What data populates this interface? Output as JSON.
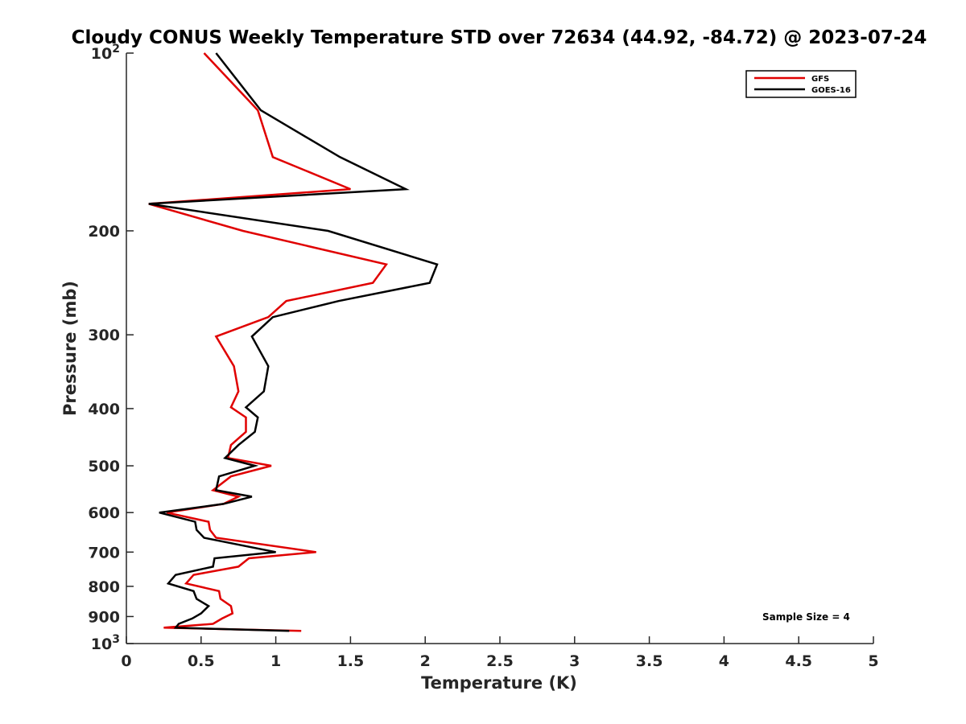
{
  "chart_data": {
    "type": "line",
    "title": "Cloudy CONUS Weekly Temperature STD over 72634 (44.92, -84.72) @ 2023-07-24",
    "xlabel": "Temperature (K)",
    "ylabel": "Pressure (mb)",
    "xlim": [
      0,
      5
    ],
    "ylim": [
      100,
      1000
    ],
    "y_scale": "log",
    "y_reversed": true,
    "x_ticks": [
      "0",
      "0.5",
      "1",
      "1.5",
      "2",
      "2.5",
      "3",
      "3.5",
      "4",
      "4.5",
      "5"
    ],
    "x_tick_values": [
      0,
      0.5,
      1,
      1.5,
      2,
      2.5,
      3,
      3.5,
      4,
      4.5,
      5
    ],
    "y_ticks": [
      {
        "value": 100,
        "base": "10",
        "exp": "2"
      },
      {
        "value": 200,
        "label": "200"
      },
      {
        "value": 300,
        "label": "300"
      },
      {
        "value": 400,
        "label": "400"
      },
      {
        "value": 500,
        "label": "500"
      },
      {
        "value": 600,
        "label": "600"
      },
      {
        "value": 700,
        "label": "700"
      },
      {
        "value": 800,
        "label": "800"
      },
      {
        "value": 900,
        "label": "900"
      },
      {
        "value": 1000,
        "base": "10",
        "exp": "3"
      }
    ],
    "legend_position": "top-right",
    "grid": false,
    "annotation": "Sample Size = 4",
    "series": [
      {
        "name": "GFS",
        "color": "#e00000",
        "points": [
          [
            0.52,
            100
          ],
          [
            0.88,
            125
          ],
          [
            0.98,
            150
          ],
          [
            1.5,
            170
          ],
          [
            0.15,
            180
          ],
          [
            0.78,
            200
          ],
          [
            1.74,
            228
          ],
          [
            1.65,
            245
          ],
          [
            1.07,
            263
          ],
          [
            0.95,
            280
          ],
          [
            0.6,
            302
          ],
          [
            0.72,
            339
          ],
          [
            0.75,
            374
          ],
          [
            0.7,
            398
          ],
          [
            0.8,
            414
          ],
          [
            0.8,
            438
          ],
          [
            0.7,
            461
          ],
          [
            0.68,
            485
          ],
          [
            0.97,
            500
          ],
          [
            0.7,
            521
          ],
          [
            0.58,
            550
          ],
          [
            0.75,
            564
          ],
          [
            0.65,
            580
          ],
          [
            0.27,
            600
          ],
          [
            0.55,
            622
          ],
          [
            0.56,
            642
          ],
          [
            0.6,
            662
          ],
          [
            1.27,
            700
          ],
          [
            0.82,
            717
          ],
          [
            0.75,
            741
          ],
          [
            0.45,
            765
          ],
          [
            0.4,
            791
          ],
          [
            0.62,
            815
          ],
          [
            0.63,
            840
          ],
          [
            0.7,
            864
          ],
          [
            0.71,
            889
          ],
          [
            0.64,
            907
          ],
          [
            0.58,
            926
          ],
          [
            0.25,
            940
          ],
          [
            1.17,
            952
          ]
        ]
      },
      {
        "name": "GOES-16",
        "color": "#000000",
        "points": [
          [
            0.6,
            100
          ],
          [
            0.9,
            125
          ],
          [
            1.43,
            150
          ],
          [
            1.87,
            170
          ],
          [
            0.15,
            180
          ],
          [
            1.35,
            200
          ],
          [
            2.08,
            228
          ],
          [
            2.03,
            245
          ],
          [
            1.42,
            263
          ],
          [
            0.98,
            280
          ],
          [
            0.84,
            302
          ],
          [
            0.95,
            339
          ],
          [
            0.92,
            374
          ],
          [
            0.8,
            398
          ],
          [
            0.88,
            414
          ],
          [
            0.86,
            438
          ],
          [
            0.75,
            461
          ],
          [
            0.66,
            485
          ],
          [
            0.86,
            500
          ],
          [
            0.62,
            521
          ],
          [
            0.6,
            550
          ],
          [
            0.84,
            564
          ],
          [
            0.65,
            580
          ],
          [
            0.22,
            600
          ],
          [
            0.46,
            622
          ],
          [
            0.47,
            642
          ],
          [
            0.52,
            662
          ],
          [
            1.0,
            700
          ],
          [
            0.59,
            717
          ],
          [
            0.58,
            741
          ],
          [
            0.33,
            765
          ],
          [
            0.28,
            791
          ],
          [
            0.45,
            815
          ],
          [
            0.47,
            840
          ],
          [
            0.55,
            864
          ],
          [
            0.5,
            889
          ],
          [
            0.44,
            907
          ],
          [
            0.35,
            926
          ],
          [
            0.33,
            940
          ],
          [
            1.09,
            952
          ]
        ]
      }
    ]
  }
}
